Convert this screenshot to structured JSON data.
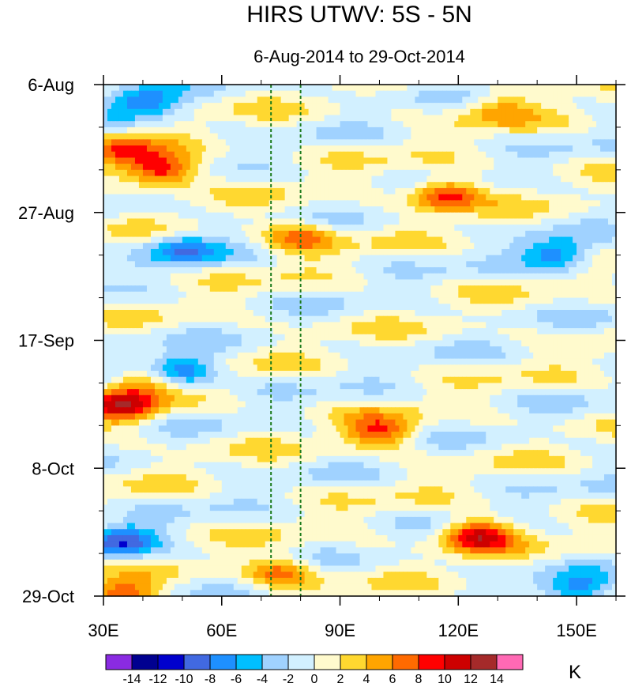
{
  "chart_data": {
    "type": "heatmap",
    "title": "HIRS UTWV: 5S - 5N",
    "subtitle": "6-Aug-2014 to 29-Oct-2014",
    "x_axis": {
      "range": [
        30,
        160
      ],
      "tick_values": [
        30,
        60,
        90,
        120,
        150
      ],
      "tick_labels": [
        "30E",
        "60E",
        "90E",
        "120E",
        "150E"
      ],
      "minor_step": 10
    },
    "y_axis": {
      "range_days": [
        0,
        84
      ],
      "tick_values": [
        0,
        21,
        42,
        63,
        84
      ],
      "tick_labels": [
        "6-Aug",
        "27-Aug",
        "17-Sep",
        "8-Oct",
        "29-Oct"
      ],
      "minor_step_days": 7,
      "direction": "time increases downward"
    },
    "reference_lines_lon": [
      72.5,
      80
    ],
    "colorbar": {
      "levels": [
        -14,
        -12,
        -10,
        -8,
        -6,
        -4,
        -2,
        0,
        2,
        4,
        6,
        8,
        10,
        12,
        14
      ],
      "colors": [
        "#8a2be2",
        "#000090",
        "#0000cd",
        "#4169e1",
        "#1e90ff",
        "#00bfff",
        "#a0d2ff",
        "#d2f0ff",
        "#fffacd",
        "#ffd830",
        "#ffa500",
        "#ff6a00",
        "#ff0000",
        "#cd0000",
        "#a52a2a",
        "#ff69b4"
      ],
      "unit": "K"
    },
    "features": [
      {
        "lon": 45,
        "day": 14,
        "value": 11
      },
      {
        "lon": 35,
        "day": 11,
        "value": 7
      },
      {
        "lon": 117,
        "day": 18,
        "value": 10
      },
      {
        "lon": 40,
        "day": 3,
        "value": -8
      },
      {
        "lon": 50,
        "day": 27,
        "value": -7
      },
      {
        "lon": 80,
        "day": 25,
        "value": 7
      },
      {
        "lon": 35,
        "day": 53,
        "value": 10
      },
      {
        "lon": 40,
        "day": 49,
        "value": 6
      },
      {
        "lon": 50,
        "day": 47,
        "value": -9
      },
      {
        "lon": 100,
        "day": 57,
        "value": 8
      },
      {
        "lon": 125,
        "day": 74,
        "value": 11
      },
      {
        "lon": 35,
        "day": 84,
        "value": 9
      },
      {
        "lon": 75,
        "day": 80,
        "value": 7
      },
      {
        "lon": 145,
        "day": 28,
        "value": -8
      },
      {
        "lon": 150,
        "day": 83,
        "value": -7
      },
      {
        "lon": 35,
        "day": 75,
        "value": -9
      },
      {
        "lon": 130,
        "day": 4,
        "value": 5
      }
    ]
  }
}
